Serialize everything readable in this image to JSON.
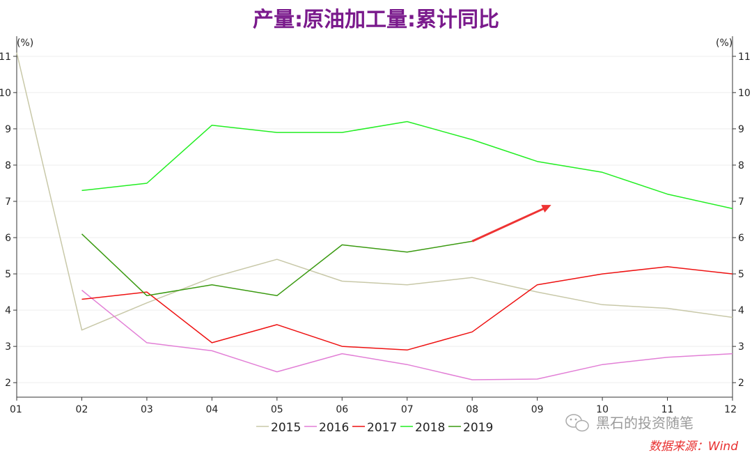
{
  "chart_data": {
    "type": "line",
    "title": "产量:原油加工量:累计同比",
    "unit_left": "(%)",
    "unit_right": "(%)",
    "x": [
      "01",
      "02",
      "03",
      "04",
      "05",
      "06",
      "07",
      "08",
      "09",
      "10",
      "11",
      "12"
    ],
    "ylim": [
      1.6,
      11.4
    ],
    "yticks": [
      2,
      3,
      4,
      5,
      6,
      7,
      8,
      9,
      10,
      11
    ],
    "series": [
      {
        "name": "2015",
        "color": "#c8c8a8",
        "values": [
          11.1,
          3.45,
          4.2,
          4.9,
          5.4,
          4.8,
          4.7,
          4.9,
          4.5,
          4.15,
          4.05,
          3.8
        ]
      },
      {
        "name": "2016",
        "color": "#e27fd6",
        "values": [
          null,
          4.55,
          3.1,
          2.88,
          2.3,
          2.8,
          2.5,
          2.08,
          2.1,
          2.5,
          2.7,
          2.8
        ]
      },
      {
        "name": "2017",
        "color": "#ee1111",
        "values": [
          null,
          4.3,
          4.5,
          3.1,
          3.6,
          3.0,
          2.9,
          3.4,
          4.7,
          5.0,
          5.2,
          5.0
        ]
      },
      {
        "name": "2018",
        "color": "#22ee22",
        "values": [
          null,
          7.3,
          7.5,
          9.1,
          8.9,
          8.9,
          9.2,
          8.7,
          8.1,
          7.8,
          7.2,
          6.8
        ]
      },
      {
        "name": "2019",
        "color": "#3a9a10",
        "values": [
          null,
          6.1,
          4.4,
          4.7,
          4.4,
          5.8,
          5.6,
          5.9,
          null,
          null,
          null,
          null
        ]
      }
    ],
    "annotation": {
      "type": "arrow",
      "color": "#ee3333",
      "from": {
        "x": "08",
        "y": 5.9
      },
      "to": {
        "x": "09",
        "y": 6.9
      }
    },
    "grid": true,
    "legend": "bottom-center"
  },
  "watermark": "黑石的投资随笔",
  "source": "数据来源：Wind",
  "colors": {
    "title": "#7a1a8c",
    "source": "#e83030",
    "axis": "#333333",
    "grid": "#eeeeee"
  }
}
